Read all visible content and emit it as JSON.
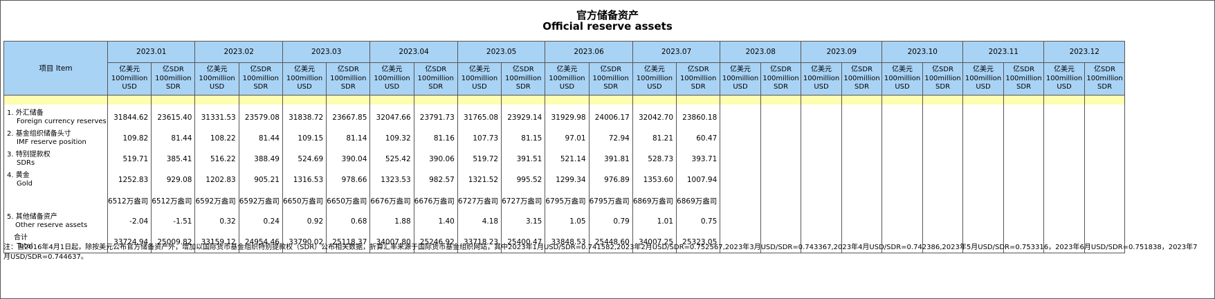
{
  "title_cn": "官方储备资产",
  "title_en": "Official reserve assets",
  "item_header": "项目 Item",
  "months": [
    "2023.01",
    "2023.02",
    "2023.03",
    "2023.04",
    "2023.05",
    "2023.06",
    "2023.07",
    "2023.08",
    "2023.09",
    "2023.10",
    "2023.11",
    "2023.12"
  ],
  "unit_usd": "亿美元 100million USD",
  "unit_sdr": "亿SDR 100million SDR",
  "rows": [
    {
      "cn": "1. 外汇储备",
      "en": "Foreign currency reserves",
      "indent": "en",
      "values": [
        "31844.62",
        "23615.40",
        "31331.53",
        "23579.08",
        "31838.72",
        "23667.85",
        "32047.66",
        "23791.73",
        "31765.08",
        "23929.14",
        "31929.98",
        "24006.17",
        "32042.70",
        "23860.18",
        "",
        "",
        "",
        "",
        "",
        "",
        "",
        "",
        "",
        ""
      ]
    },
    {
      "cn": "2. 基金组织储备头寸",
      "en": "IMF reserve position",
      "indent": "en",
      "values": [
        "109.82",
        "81.44",
        "108.22",
        "81.44",
        "109.15",
        "81.14",
        "109.32",
        "81.16",
        "107.73",
        "81.15",
        "97.01",
        "72.94",
        "81.21",
        "60.47",
        "",
        "",
        "",
        "",
        "",
        "",
        "",
        "",
        "",
        ""
      ]
    },
    {
      "cn": "3. 特别提款权",
      "en": "SDRs",
      "indent": "en",
      "values": [
        "519.71",
        "385.41",
        "516.22",
        "388.49",
        "524.69",
        "390.04",
        "525.42",
        "390.06",
        "519.72",
        "391.51",
        "521.14",
        "391.81",
        "528.73",
        "393.71",
        "",
        "",
        "",
        "",
        "",
        "",
        "",
        "",
        "",
        ""
      ]
    },
    {
      "cn": "4. 黄金",
      "en": "Gold",
      "indent": "en",
      "values": [
        "1252.83",
        "929.08",
        "1202.83",
        "905.21",
        "1316.53",
        "978.66",
        "1323.53",
        "982.57",
        "1321.52",
        "995.52",
        "1299.34",
        "976.89",
        "1353.60",
        "1007.94",
        "",
        "",
        "",
        "",
        "",
        "",
        "",
        "",
        "",
        ""
      ]
    },
    {
      "cn": "",
      "en": "",
      "indent": "en",
      "values": [
        "6512万盎司",
        "6512万盎司",
        "6592万盎司",
        "6592万盎司",
        "6650万盎司",
        "6650万盎司",
        "6676万盎司",
        "6676万盎司",
        "6727万盎司",
        "6727万盎司",
        "6795万盎司",
        "6795万盎司",
        "6869万盎司",
        "6869万盎司",
        "",
        "",
        "",
        "",
        "",
        "",
        "",
        "",
        "",
        ""
      ]
    },
    {
      "cn": "5. 其他储备资产",
      "en": "Other reserve assets",
      "indent": "en2",
      "values": [
        "-2.04",
        "-1.51",
        "0.32",
        "0.24",
        "0.92",
        "0.68",
        "1.88",
        "1.40",
        "4.18",
        "3.15",
        "1.05",
        "0.79",
        "1.01",
        "0.75",
        "",
        "",
        "",
        "",
        "",
        "",
        "",
        "",
        "",
        ""
      ]
    },
    {
      "cn": "合计",
      "en": "Total",
      "indent": "total",
      "values": [
        "33724.94",
        "25009.82",
        "33159.12",
        "24954.46",
        "33790.02",
        "25118.37",
        "34007.80",
        "25246.92",
        "33718.23",
        "25400.47",
        "33848.53",
        "25448.60",
        "34007.25",
        "25323.05",
        "",
        "",
        "",
        "",
        "",
        "",
        "",
        "",
        "",
        ""
      ]
    }
  ],
  "note": "注：自2016年4月1日起，除按美元公布官方储备资产外，增加以国际货币基金组织特别提款权（SDR）公布相关数据，折算汇率来源于国际货币基金组织网站，其中2023年1月USD/SDR=0.741582,2023年2月USD/SDR=0.752567,2023年3月USD/SDR=0.743367,2023年4月USD/SDR=0.742386,2023年5月USD/SDR=0.753316，2023年6月USD/SDR=0.751838，2023年7月USD/SDR=0.744637。"
}
